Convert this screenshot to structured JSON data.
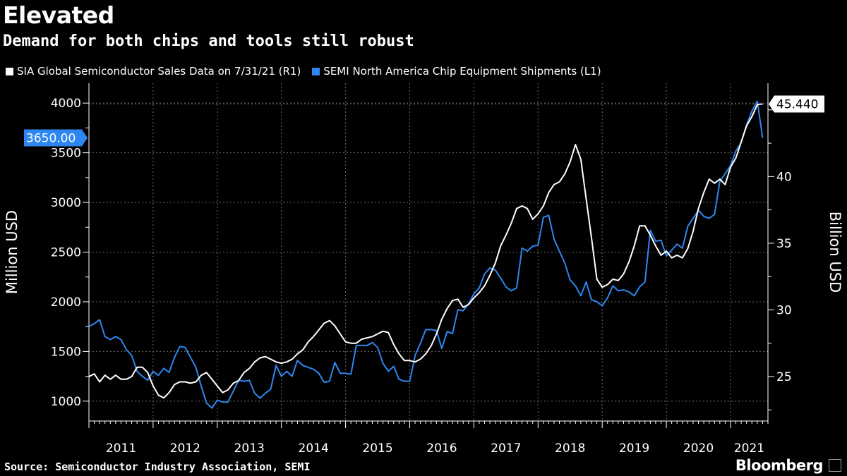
{
  "header": {
    "title": "Elevated",
    "subtitle": "Demand for both chips and tools still robust"
  },
  "legend": [
    {
      "label": "SIA Global Semiconductor Sales Data on 7/31/21 (R1)",
      "color": "#ffffff"
    },
    {
      "label": "SEMI North America Chip Equipment Shipments (L1)",
      "color": "#2e86f0"
    }
  ],
  "footer": {
    "source": "Source: Semiconductor Industry Association, SEMI",
    "brand": "Bloomberg"
  },
  "chart_data": {
    "type": "line",
    "x_start": "2011-01",
    "x_end": "2021-07",
    "xtick_labels": [
      "2011",
      "2012",
      "2013",
      "2014",
      "2015",
      "2016",
      "2017",
      "2018",
      "2019",
      "2020",
      "2021"
    ],
    "ylabel_left": "Million USD",
    "ylabel_right": "Billion USD",
    "ylim_left": [
      800,
      4200
    ],
    "ylim_right": [
      21.6667,
      47
    ],
    "yticks_left": [
      1000,
      1500,
      2000,
      2500,
      3000,
      3500,
      4000
    ],
    "yticks_right": [
      25,
      30,
      35,
      40
    ],
    "last_value_left": "3650.00",
    "last_value_right": "45.440",
    "grid": true,
    "legend_position": "top",
    "series": [
      {
        "name": "SEMI North America Chip Equipment Shipments (L1)",
        "axis": "left",
        "color": "#2e86f0",
        "data": [
          [
            "2011-01",
            1750
          ],
          [
            "2011-02",
            1780
          ],
          [
            "2011-03",
            1820
          ],
          [
            "2011-04",
            1650
          ],
          [
            "2011-05",
            1620
          ],
          [
            "2011-06",
            1650
          ],
          [
            "2011-07",
            1620
          ],
          [
            "2011-08",
            1520
          ],
          [
            "2011-09",
            1460
          ],
          [
            "2011-10",
            1300
          ],
          [
            "2011-11",
            1250
          ],
          [
            "2011-12",
            1210
          ],
          [
            "2012-01",
            1300
          ],
          [
            "2012-02",
            1260
          ],
          [
            "2012-03",
            1330
          ],
          [
            "2012-04",
            1290
          ],
          [
            "2012-05",
            1440
          ],
          [
            "2012-06",
            1550
          ],
          [
            "2012-07",
            1540
          ],
          [
            "2012-08",
            1440
          ],
          [
            "2012-09",
            1340
          ],
          [
            "2012-10",
            1150
          ],
          [
            "2012-11",
            980
          ],
          [
            "2012-12",
            930
          ],
          [
            "2013-01",
            1010
          ],
          [
            "2013-02",
            990
          ],
          [
            "2013-03",
            990
          ],
          [
            "2013-04",
            1100
          ],
          [
            "2013-05",
            1210
          ],
          [
            "2013-06",
            1200
          ],
          [
            "2013-07",
            1210
          ],
          [
            "2013-08",
            1080
          ],
          [
            "2013-09",
            1030
          ],
          [
            "2013-10",
            1080
          ],
          [
            "2013-11",
            1120
          ],
          [
            "2013-12",
            1360
          ],
          [
            "2014-01",
            1250
          ],
          [
            "2014-02",
            1300
          ],
          [
            "2014-03",
            1250
          ],
          [
            "2014-04",
            1410
          ],
          [
            "2014-05",
            1360
          ],
          [
            "2014-06",
            1340
          ],
          [
            "2014-07",
            1320
          ],
          [
            "2014-08",
            1280
          ],
          [
            "2014-09",
            1190
          ],
          [
            "2014-10",
            1200
          ],
          [
            "2014-11",
            1390
          ],
          [
            "2014-12",
            1280
          ],
          [
            "2015-01",
            1280
          ],
          [
            "2015-02",
            1270
          ],
          [
            "2015-03",
            1560
          ],
          [
            "2015-04",
            1560
          ],
          [
            "2015-05",
            1560
          ],
          [
            "2015-06",
            1590
          ],
          [
            "2015-07",
            1540
          ],
          [
            "2015-08",
            1380
          ],
          [
            "2015-09",
            1300
          ],
          [
            "2015-10",
            1350
          ],
          [
            "2015-11",
            1220
          ],
          [
            "2015-12",
            1200
          ],
          [
            "2016-01",
            1200
          ],
          [
            "2016-02",
            1460
          ],
          [
            "2016-03",
            1580
          ],
          [
            "2016-04",
            1720
          ],
          [
            "2016-05",
            1720
          ],
          [
            "2016-06",
            1710
          ],
          [
            "2016-07",
            1530
          ],
          [
            "2016-08",
            1700
          ],
          [
            "2016-09",
            1680
          ],
          [
            "2016-10",
            1920
          ],
          [
            "2016-11",
            1910
          ],
          [
            "2016-12",
            1980
          ],
          [
            "2017-01",
            2080
          ],
          [
            "2017-02",
            2140
          ],
          [
            "2017-03",
            2280
          ],
          [
            "2017-04",
            2340
          ],
          [
            "2017-05",
            2320
          ],
          [
            "2017-06",
            2240
          ],
          [
            "2017-07",
            2150
          ],
          [
            "2017-08",
            2110
          ],
          [
            "2017-09",
            2140
          ],
          [
            "2017-10",
            2540
          ],
          [
            "2017-11",
            2510
          ],
          [
            "2017-12",
            2560
          ],
          [
            "2018-01",
            2570
          ],
          [
            "2018-02",
            2850
          ],
          [
            "2018-03",
            2870
          ],
          [
            "2018-04",
            2630
          ],
          [
            "2018-05",
            2510
          ],
          [
            "2018-06",
            2390
          ],
          [
            "2018-07",
            2220
          ],
          [
            "2018-08",
            2160
          ],
          [
            "2018-09",
            2060
          ],
          [
            "2018-10",
            2200
          ],
          [
            "2018-11",
            2020
          ],
          [
            "2018-12",
            2000
          ],
          [
            "2019-01",
            1960
          ],
          [
            "2019-02",
            2040
          ],
          [
            "2019-03",
            2160
          ],
          [
            "2019-04",
            2110
          ],
          [
            "2019-05",
            2120
          ],
          [
            "2019-06",
            2100
          ],
          [
            "2019-07",
            2060
          ],
          [
            "2019-08",
            2150
          ],
          [
            "2019-09",
            2200
          ],
          [
            "2019-10",
            2720
          ],
          [
            "2019-11",
            2610
          ],
          [
            "2019-12",
            2620
          ],
          [
            "2020-01",
            2460
          ],
          [
            "2020-02",
            2520
          ],
          [
            "2020-03",
            2580
          ],
          [
            "2020-04",
            2540
          ],
          [
            "2020-05",
            2760
          ],
          [
            "2020-06",
            2840
          ],
          [
            "2020-07",
            2920
          ],
          [
            "2020-08",
            2860
          ],
          [
            "2020-09",
            2840
          ],
          [
            "2020-10",
            2880
          ],
          [
            "2020-11",
            3210
          ],
          [
            "2020-12",
            3290
          ],
          [
            "2021-01",
            3370
          ],
          [
            "2021-02",
            3520
          ],
          [
            "2021-03",
            3600
          ],
          [
            "2021-04",
            3780
          ],
          [
            "2021-05",
            3920
          ],
          [
            "2021-06",
            4020
          ],
          [
            "2021-07",
            3650
          ]
        ]
      },
      {
        "name": "SIA Global Semiconductor Sales Data on 7/31/21 (R1)",
        "axis": "right",
        "color": "#ffffff",
        "data": [
          [
            "2011-01",
            25.0
          ],
          [
            "2011-02",
            25.2
          ],
          [
            "2011-03",
            24.6
          ],
          [
            "2011-04",
            25.1
          ],
          [
            "2011-05",
            24.8
          ],
          [
            "2011-06",
            25.1
          ],
          [
            "2011-07",
            24.8
          ],
          [
            "2011-08",
            24.8
          ],
          [
            "2011-09",
            25.0
          ],
          [
            "2011-10",
            25.7
          ],
          [
            "2011-11",
            25.7
          ],
          [
            "2011-12",
            25.3
          ],
          [
            "2012-01",
            24.3
          ],
          [
            "2012-02",
            23.6
          ],
          [
            "2012-03",
            23.4
          ],
          [
            "2012-04",
            23.8
          ],
          [
            "2012-05",
            24.4
          ],
          [
            "2012-06",
            24.6
          ],
          [
            "2012-07",
            24.6
          ],
          [
            "2012-08",
            24.5
          ],
          [
            "2012-09",
            24.6
          ],
          [
            "2012-10",
            25.1
          ],
          [
            "2012-11",
            25.3
          ],
          [
            "2012-12",
            24.8
          ],
          [
            "2013-01",
            24.3
          ],
          [
            "2013-02",
            23.8
          ],
          [
            "2013-03",
            24.0
          ],
          [
            "2013-04",
            24.5
          ],
          [
            "2013-05",
            24.7
          ],
          [
            "2013-06",
            25.3
          ],
          [
            "2013-07",
            25.6
          ],
          [
            "2013-08",
            26.1
          ],
          [
            "2013-09",
            26.4
          ],
          [
            "2013-10",
            26.5
          ],
          [
            "2013-11",
            26.3
          ],
          [
            "2013-12",
            26.1
          ],
          [
            "2014-01",
            26.0
          ],
          [
            "2014-02",
            26.1
          ],
          [
            "2014-03",
            26.3
          ],
          [
            "2014-04",
            26.7
          ],
          [
            "2014-05",
            27.0
          ],
          [
            "2014-06",
            27.6
          ],
          [
            "2014-07",
            28.0
          ],
          [
            "2014-08",
            28.5
          ],
          [
            "2014-09",
            29.0
          ],
          [
            "2014-10",
            29.2
          ],
          [
            "2014-11",
            28.8
          ],
          [
            "2014-12",
            28.2
          ],
          [
            "2015-01",
            27.6
          ],
          [
            "2015-02",
            27.5
          ],
          [
            "2015-03",
            27.5
          ],
          [
            "2015-04",
            27.8
          ],
          [
            "2015-05",
            27.9
          ],
          [
            "2015-06",
            28.0
          ],
          [
            "2015-07",
            28.2
          ],
          [
            "2015-08",
            28.4
          ],
          [
            "2015-09",
            28.3
          ],
          [
            "2015-10",
            27.4
          ],
          [
            "2015-11",
            26.7
          ],
          [
            "2015-12",
            26.2
          ],
          [
            "2016-01",
            26.2
          ],
          [
            "2016-02",
            26.1
          ],
          [
            "2016-03",
            26.3
          ],
          [
            "2016-04",
            26.7
          ],
          [
            "2016-05",
            27.3
          ],
          [
            "2016-06",
            28.2
          ],
          [
            "2016-07",
            29.3
          ],
          [
            "2016-08",
            30.1
          ],
          [
            "2016-09",
            30.7
          ],
          [
            "2016-10",
            30.8
          ],
          [
            "2016-11",
            30.2
          ],
          [
            "2016-12",
            30.4
          ],
          [
            "2017-01",
            30.9
          ],
          [
            "2017-02",
            31.3
          ],
          [
            "2017-03",
            31.8
          ],
          [
            "2017-04",
            32.6
          ],
          [
            "2017-05",
            33.5
          ],
          [
            "2017-06",
            34.8
          ],
          [
            "2017-07",
            35.6
          ],
          [
            "2017-08",
            36.5
          ],
          [
            "2017-09",
            37.6
          ],
          [
            "2017-10",
            37.8
          ],
          [
            "2017-11",
            37.6
          ],
          [
            "2017-12",
            36.8
          ],
          [
            "2018-01",
            37.2
          ],
          [
            "2018-02",
            37.8
          ],
          [
            "2018-03",
            38.8
          ],
          [
            "2018-04",
            39.4
          ],
          [
            "2018-05",
            39.6
          ],
          [
            "2018-06",
            40.2
          ],
          [
            "2018-07",
            41.1
          ],
          [
            "2018-08",
            42.4
          ],
          [
            "2018-09",
            41.3
          ],
          [
            "2018-10",
            38.3
          ],
          [
            "2018-11",
            35.4
          ],
          [
            "2018-12",
            32.3
          ],
          [
            "2019-01",
            31.7
          ],
          [
            "2019-02",
            31.9
          ],
          [
            "2019-03",
            32.3
          ],
          [
            "2019-04",
            32.2
          ],
          [
            "2019-05",
            32.7
          ],
          [
            "2019-06",
            33.6
          ],
          [
            "2019-07",
            34.8
          ],
          [
            "2019-08",
            36.3
          ],
          [
            "2019-09",
            36.3
          ],
          [
            "2019-10",
            35.6
          ],
          [
            "2019-11",
            34.8
          ],
          [
            "2019-12",
            34.1
          ],
          [
            "2020-01",
            34.4
          ],
          [
            "2020-02",
            33.9
          ],
          [
            "2020-03",
            34.1
          ],
          [
            "2020-04",
            33.9
          ],
          [
            "2020-05",
            34.6
          ],
          [
            "2020-06",
            35.9
          ],
          [
            "2020-07",
            37.6
          ],
          [
            "2020-08",
            38.8
          ],
          [
            "2020-09",
            39.8
          ],
          [
            "2020-10",
            39.5
          ],
          [
            "2020-11",
            39.8
          ],
          [
            "2020-12",
            39.4
          ],
          [
            "2021-01",
            40.7
          ],
          [
            "2021-02",
            41.4
          ],
          [
            "2021-03",
            42.6
          ],
          [
            "2021-04",
            43.8
          ],
          [
            "2021-05",
            44.5
          ],
          [
            "2021-06",
            45.4
          ],
          [
            "2021-07",
            45.44
          ]
        ]
      }
    ]
  }
}
